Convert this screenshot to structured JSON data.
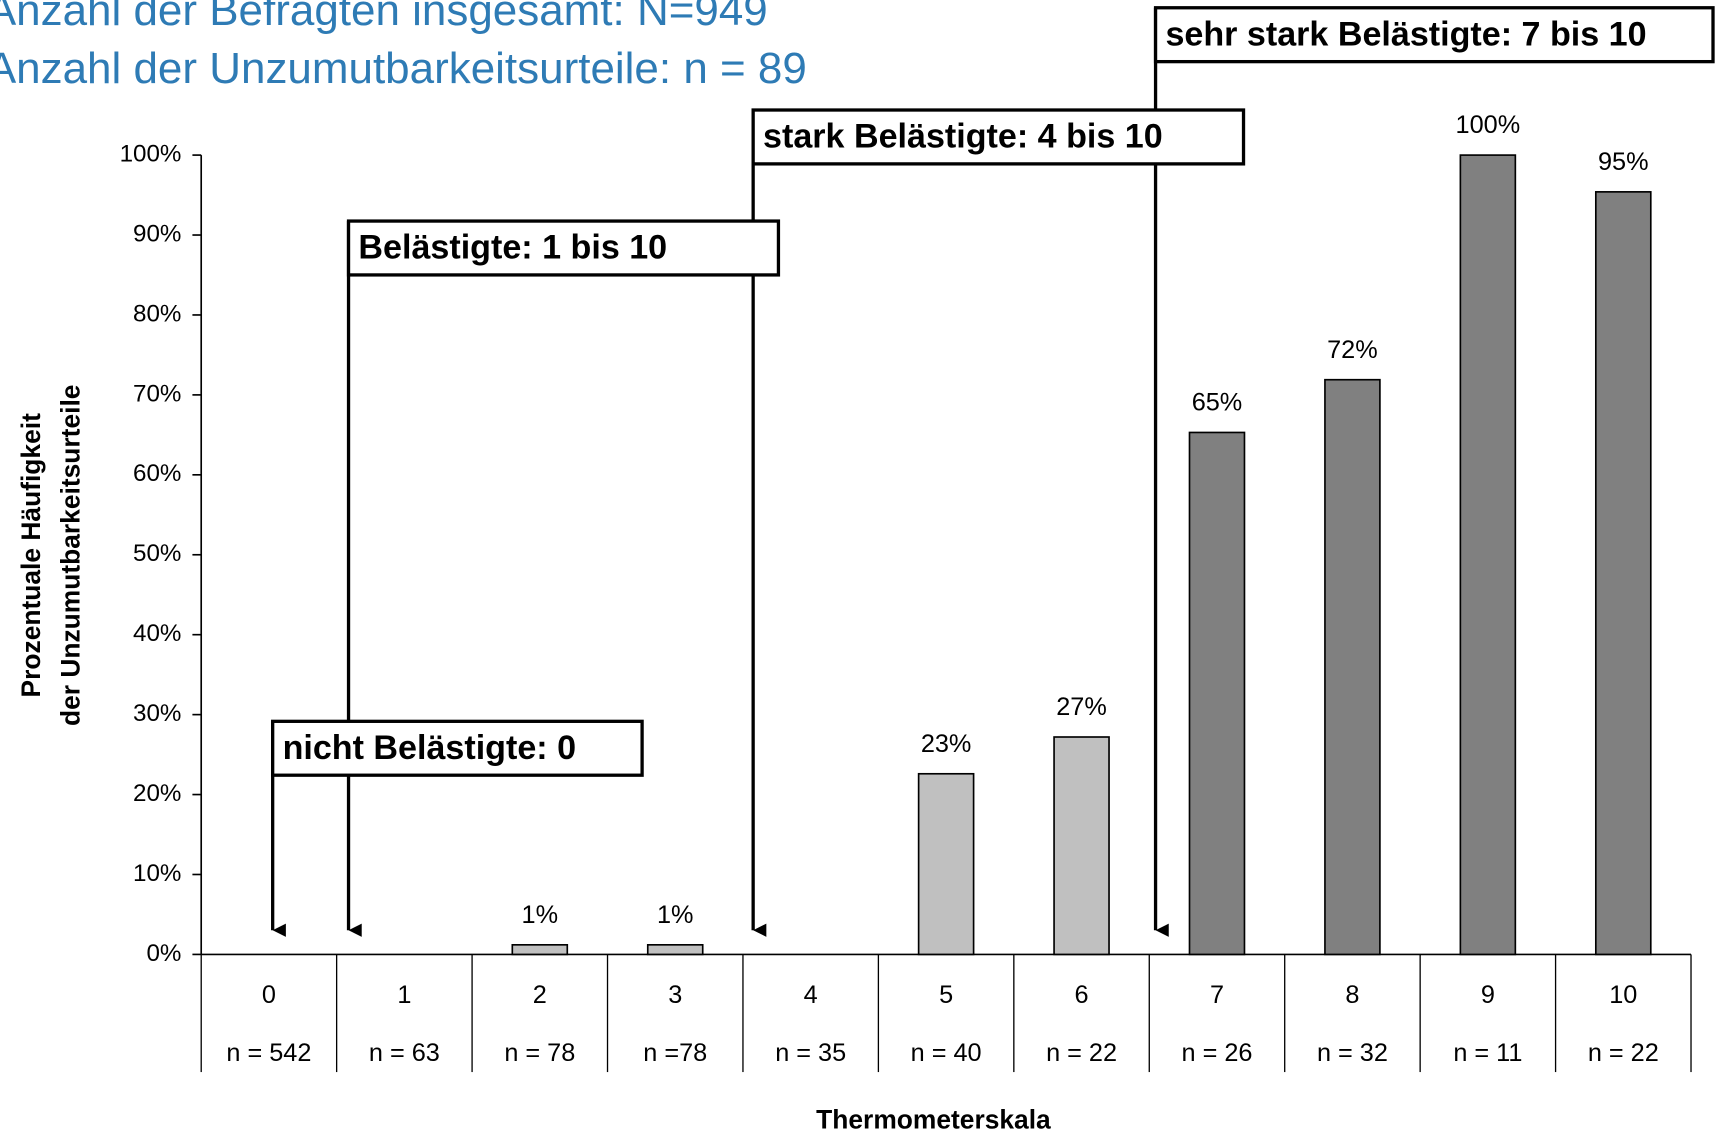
{
  "chart_data": {
    "type": "bar",
    "header": [
      "Anzahl der Befragten insgesamt: N=949",
      "Anzahl der Unzumutbarkeitsurteile: n = 89"
    ],
    "y_title": [
      "Prozentuale Häufigkeit",
      "der Unzumutbarkeitsurteile"
    ],
    "x_title": "Thermometerskala",
    "categories": [
      "0",
      "1",
      "2",
      "3",
      "4",
      "5",
      "6",
      "7",
      "8",
      "9",
      "10"
    ],
    "sample_sizes": [
      "n = 542",
      "n = 63",
      "n = 78",
      "n =78",
      "n = 35",
      "n = 40",
      "n = 22",
      "n = 26",
      "n = 32",
      "n = 11",
      "n = 22"
    ],
    "values": [
      0,
      0,
      1.2,
      1.2,
      0,
      22.6,
      27.2,
      65.3,
      71.9,
      100,
      95.4
    ],
    "value_labels": [
      null,
      null,
      "1%",
      "1%",
      null,
      "23%",
      "27%",
      "65%",
      "72%",
      "100%",
      "95%"
    ],
    "colors": [
      "#c0c0c0",
      "#c0c0c0",
      "#c0c0c0",
      "#c0c0c0",
      "#c0c0c0",
      "#c0c0c0",
      "#c0c0c0",
      "#808080",
      "#808080",
      "#808080",
      "#808080"
    ],
    "ylim": [
      0,
      100
    ],
    "yticks": [
      {
        "value": 0,
        "label": "0%"
      },
      {
        "value": 10,
        "label": "10%"
      },
      {
        "value": 20,
        "label": "20%"
      },
      {
        "value": 30,
        "label": "30%"
      },
      {
        "value": 40,
        "label": "40%"
      },
      {
        "value": 50,
        "label": "50%"
      },
      {
        "value": 60,
        "label": "60%"
      },
      {
        "value": 70,
        "label": "70%"
      },
      {
        "value": 80,
        "label": "80%"
      },
      {
        "value": 90,
        "label": "90%"
      },
      {
        "value": 100,
        "label": "100%"
      }
    ],
    "annotations": [
      "nicht Belästigte: 0",
      "Belästigte: 1 bis 10",
      "stark Belästigte: 4 bis 10",
      "sehr stark Belästigte: 7 bis 10"
    ]
  }
}
